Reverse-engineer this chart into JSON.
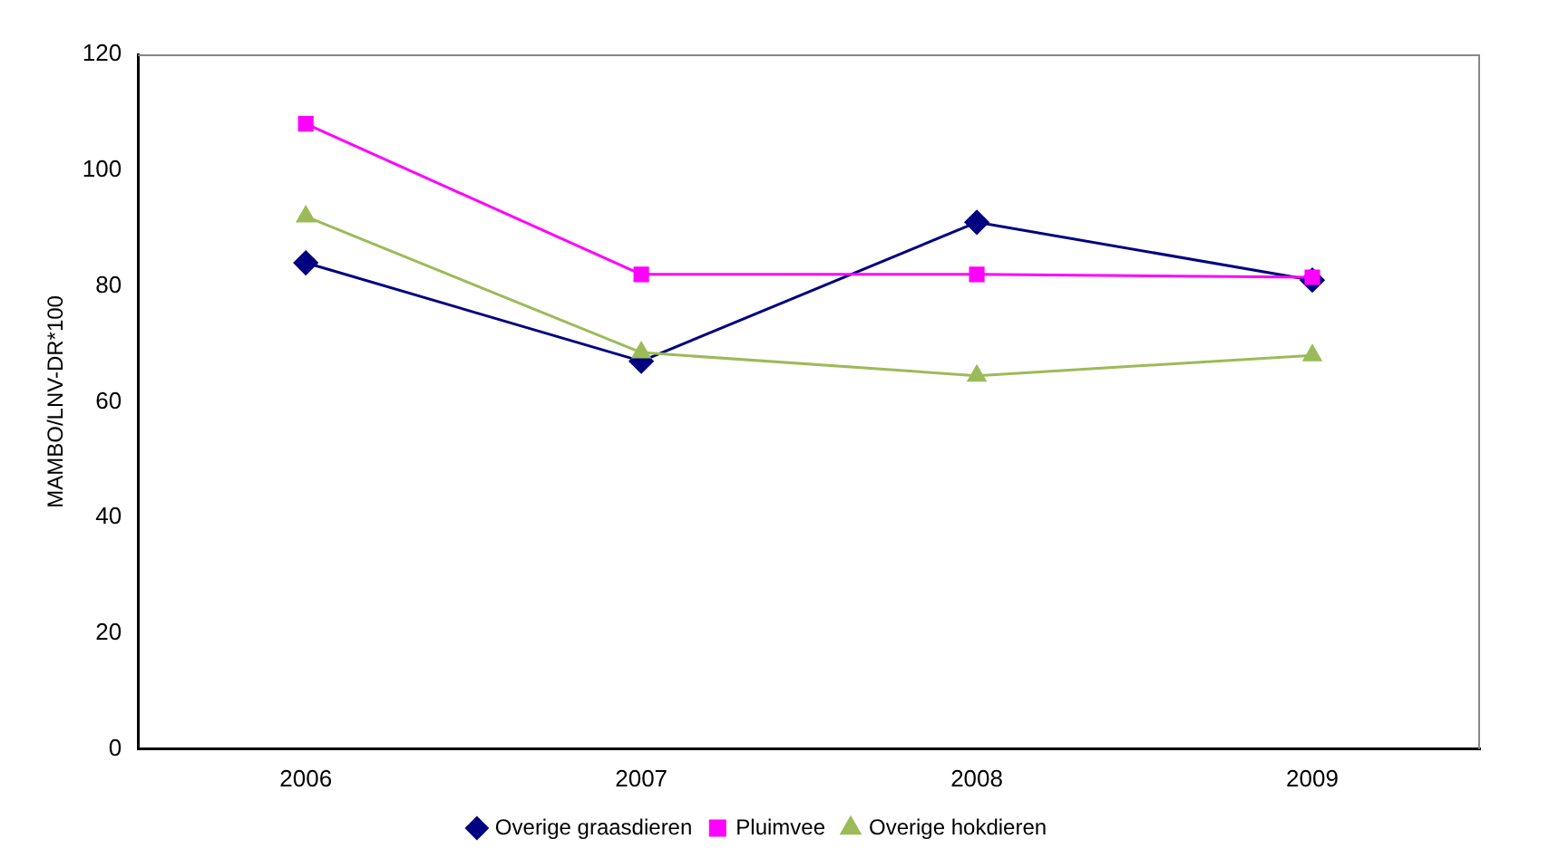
{
  "chart_data": {
    "type": "line",
    "ylabel": "MAMBO/LNV-DR*100",
    "categories": [
      "2006",
      "2007",
      "2008",
      "2009"
    ],
    "series": [
      {
        "name": "Overige graasdieren",
        "color": "#000080",
        "values": [
          84,
          67,
          91,
          81
        ],
        "marker": "diamond"
      },
      {
        "name": "Pluimvee",
        "color": "#ff00ff",
        "values": [
          108,
          82,
          82,
          81.5
        ],
        "marker": "square"
      },
      {
        "name": "Overige hokdieren",
        "color": "#9bbb59",
        "values": [
          92,
          68.5,
          64.5,
          68
        ],
        "marker": "triangle"
      }
    ],
    "ylim": [
      0,
      120
    ],
    "yticks": [
      0,
      20,
      40,
      60,
      80,
      100,
      120
    ],
    "grid": false,
    "legend": "bottom"
  }
}
